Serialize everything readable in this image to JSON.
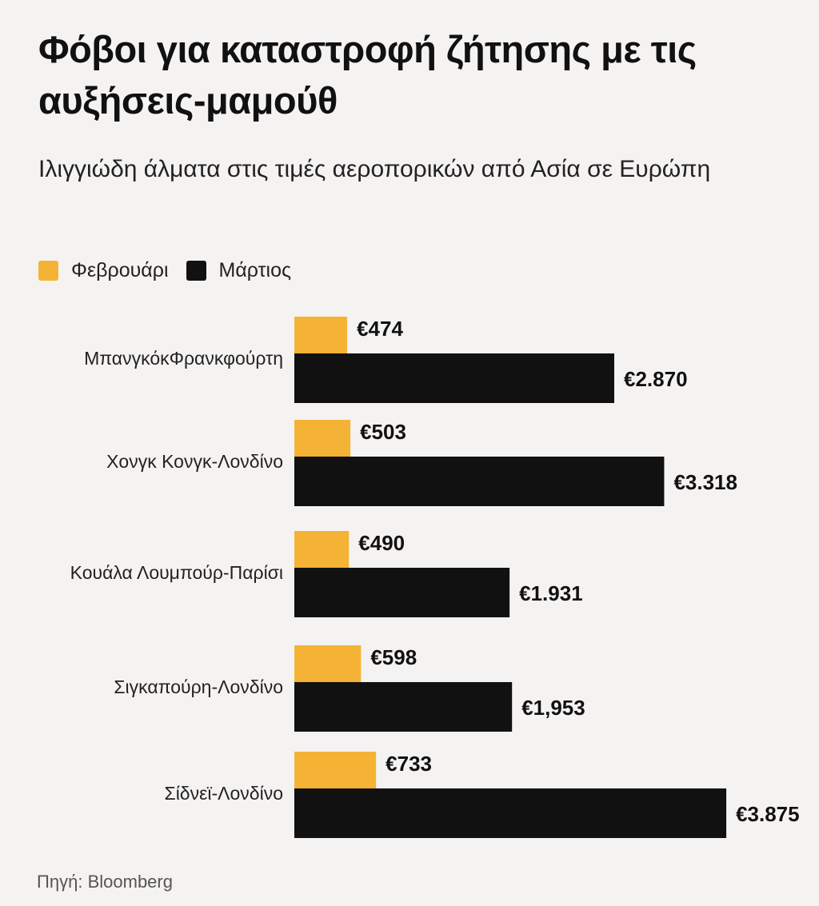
{
  "header": {
    "title": "Φόβοι για καταστροφή ζήτησης με τις αυξήσεις-μαμούθ",
    "subtitle": "Ιλιγγιώδη άλματα στις τιμές αεροπορικών από Ασία σε Ευρώπη"
  },
  "legend": [
    {
      "label": "Φεβρουάρι",
      "color": "#f5b335"
    },
    {
      "label": "Μάρτιος",
      "color": "#111111"
    }
  ],
  "chart_data": {
    "type": "bar",
    "orientation": "horizontal",
    "grouped": true,
    "unit": "€",
    "categories": [
      "ΜπανγκόκΦρανκφούρτη",
      "Χονγκ Κονγκ-Λονδίνο",
      "Κουάλα Λουμπούρ-Παρίσι",
      "Σιγκαπούρη-Λονδίνο",
      "Σίδνεϊ-Λονδίνο"
    ],
    "series": [
      {
        "name": "Φεβρουάρι",
        "color": "#f5b335",
        "values": [
          474,
          503,
          490,
          598,
          733
        ],
        "labels": [
          "€474",
          "€503",
          "€490",
          "€598",
          "€733"
        ]
      },
      {
        "name": "Μάρτιος",
        "color": "#111111",
        "values": [
          2870,
          3318,
          1931,
          1953,
          3875
        ],
        "labels": [
          "€2.870",
          "€3.318",
          "€1.931",
          "€1,953",
          "€3.875"
        ]
      }
    ],
    "grid": false,
    "legend_position": "top-left"
  },
  "source": "Πηγή: Bloomberg"
}
